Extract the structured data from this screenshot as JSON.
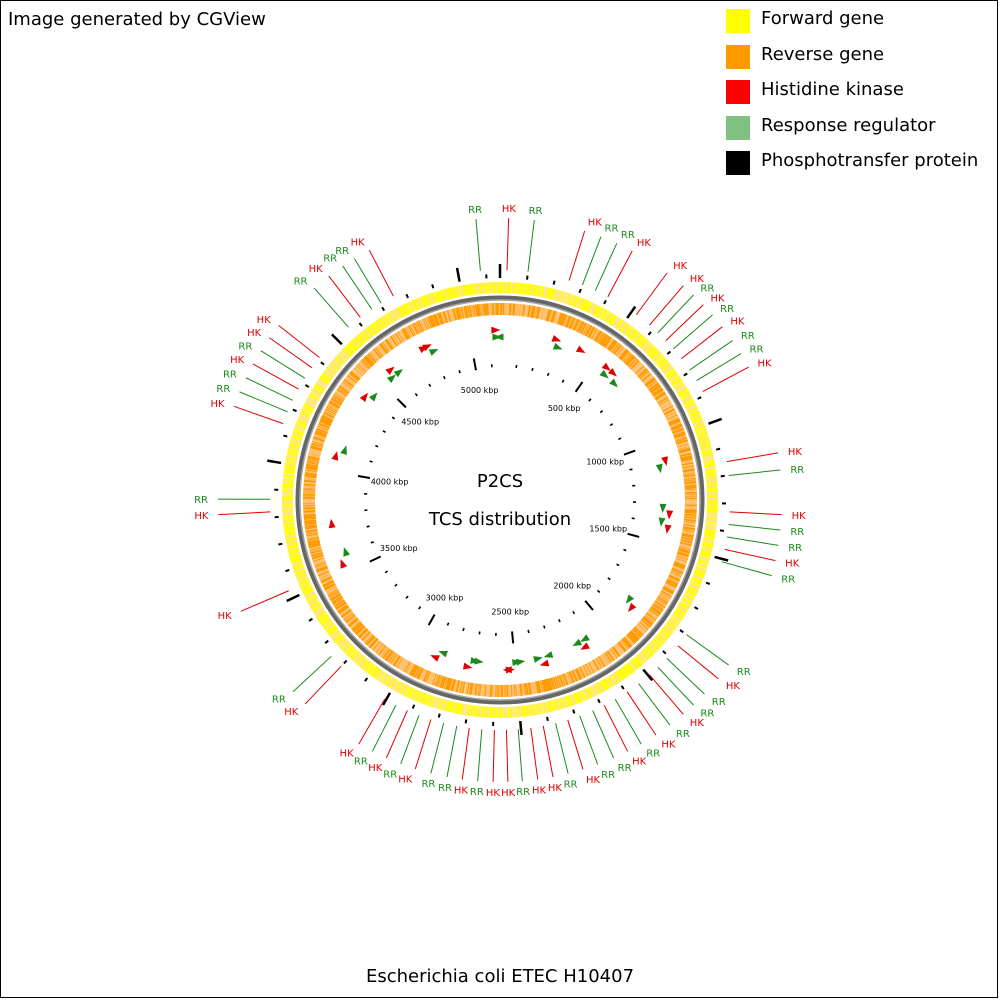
{
  "header": {
    "credit": "Image generated by CGView"
  },
  "legend": [
    {
      "label": "Forward gene",
      "color": "#ffff00"
    },
    {
      "label": "Reverse gene",
      "color": "#ff9a00"
    },
    {
      "label": "Histidine kinase",
      "color": "#ff0000"
    },
    {
      "label": "Response regulator",
      "color": "#80c080"
    },
    {
      "label": "Phosphotransfer protein",
      "color": "#000000"
    }
  ],
  "map": {
    "title": "P2CS",
    "subtitle": "TCS distribution",
    "organism": "Escherichia coli ETEC H10407",
    "genome_length_kbp": 5150,
    "tick_labels": [
      "500 kbp",
      "1000 kbp",
      "1500 kbp",
      "2000 kbp",
      "2500 kbp",
      "3000 kbp",
      "3500 kbp",
      "4000 kbp",
      "4500 kbp",
      "5000 kbp"
    ],
    "feature_labels": [
      {
        "text": "RR",
        "kbp": -70
      },
      {
        "text": "HK",
        "kbp": 25
      },
      {
        "text": "RR",
        "kbp": 100
      },
      {
        "text": "HK",
        "kbp": 250
      },
      {
        "text": "RR",
        "kbp": 300
      },
      {
        "text": "RR",
        "kbp": 350
      },
      {
        "text": "HK",
        "kbp": 400
      },
      {
        "text": "HK",
        "kbp": 520
      },
      {
        "text": "HK",
        "kbp": 580
      },
      {
        "text": "RR",
        "kbp": 620
      },
      {
        "text": "HK",
        "kbp": 660
      },
      {
        "text": "RR",
        "kbp": 700
      },
      {
        "text": "HK",
        "kbp": 745
      },
      {
        "text": "RR",
        "kbp": 795
      },
      {
        "text": "RR",
        "kbp": 840
      },
      {
        "text": "HK",
        "kbp": 885
      },
      {
        "text": "HK",
        "kbp": 1150
      },
      {
        "text": "RR",
        "kbp": 1200
      },
      {
        "text": "HK",
        "kbp": 1330
      },
      {
        "text": "RR",
        "kbp": 1375
      },
      {
        "text": "RR",
        "kbp": 1420
      },
      {
        "text": "HK",
        "kbp": 1465
      },
      {
        "text": "RR",
        "kbp": 1510
      },
      {
        "text": "RR",
        "kbp": 1800
      },
      {
        "text": "HK",
        "kbp": 1850
      },
      {
        "text": "RR",
        "kbp": 1910
      },
      {
        "text": "RR",
        "kbp": 1955
      },
      {
        "text": "HK",
        "kbp": 1995
      },
      {
        "text": "RR",
        "kbp": 2045
      },
      {
        "text": "HK",
        "kbp": 2095
      },
      {
        "text": "RR",
        "kbp": 2145
      },
      {
        "text": "HK",
        "kbp": 2190
      },
      {
        "text": "RR",
        "kbp": 2235
      },
      {
        "text": "RR",
        "kbp": 2285
      },
      {
        "text": "HK",
        "kbp": 2330
      },
      {
        "text": "RR",
        "kbp": 2375
      },
      {
        "text": "HK",
        "kbp": 2420
      },
      {
        "text": "HK",
        "kbp": 2465
      },
      {
        "text": "RR",
        "kbp": 2510
      },
      {
        "text": "HK",
        "kbp": 2552
      },
      {
        "text": "HK",
        "kbp": 2595
      },
      {
        "text": "RR",
        "kbp": 2640
      },
      {
        "text": "HK",
        "kbp": 2685
      },
      {
        "text": "RR",
        "kbp": 2730
      },
      {
        "text": "RR",
        "kbp": 2778
      },
      {
        "text": "HK",
        "kbp": 2825
      },
      {
        "text": "RR",
        "kbp": 2870
      },
      {
        "text": "HK",
        "kbp": 2915
      },
      {
        "text": "RR",
        "kbp": 2960
      },
      {
        "text": "HK",
        "kbp": 3005
      },
      {
        "text": "HK",
        "kbp": 3200
      },
      {
        "text": "RR",
        "kbp": 3250
      },
      {
        "text": "HK",
        "kbp": 3530
      },
      {
        "text": "HK",
        "kbp": 3820
      },
      {
        "text": "RR",
        "kbp": 3865
      },
      {
        "text": "HK",
        "kbp": 4140
      },
      {
        "text": "RR",
        "kbp": 4185
      },
      {
        "text": "RR",
        "kbp": 4230
      },
      {
        "text": "HK",
        "kbp": 4275
      },
      {
        "text": "RR",
        "kbp": 4320
      },
      {
        "text": "HK",
        "kbp": 4365
      },
      {
        "text": "HK",
        "kbp": 4410
      },
      {
        "text": "RR",
        "kbp": 4560
      },
      {
        "text": "HK",
        "kbp": 4615
      },
      {
        "text": "RR",
        "kbp": 4665
      },
      {
        "text": "RR",
        "kbp": 4705
      },
      {
        "text": "HK",
        "kbp": 4755
      }
    ],
    "inner_features": [
      {
        "type": "HK",
        "kbp": 5130,
        "dir": 1
      },
      {
        "type": "RR",
        "kbp": 5135,
        "dir": 1
      },
      {
        "type": "RR",
        "kbp": 5145,
        "dir": -1
      },
      {
        "type": "HK",
        "kbp": 280,
        "dir": 1
      },
      {
        "type": "RR",
        "kbp": 300,
        "dir": 1
      },
      {
        "type": "HK",
        "kbp": 410,
        "dir": 1
      },
      {
        "type": "HK",
        "kbp": 560,
        "dir": 1
      },
      {
        "type": "RR",
        "kbp": 575,
        "dir": 1
      },
      {
        "type": "HK",
        "kbp": 600,
        "dir": 1
      },
      {
        "type": "RR",
        "kbp": 640,
        "dir": 1
      },
      {
        "type": "HK",
        "kbp": 1100,
        "dir": 1
      },
      {
        "type": "RR",
        "kbp": 1130,
        "dir": 1
      },
      {
        "type": "RR",
        "kbp": 1330,
        "dir": 1
      },
      {
        "type": "HK",
        "kbp": 1360,
        "dir": 1
      },
      {
        "type": "RR",
        "kbp": 1400,
        "dir": 1
      },
      {
        "type": "HK",
        "kbp": 1430,
        "dir": 1
      },
      {
        "type": "RR",
        "kbp": 1830,
        "dir": 1
      },
      {
        "type": "HK",
        "kbp": 1855,
        "dir": 1
      },
      {
        "type": "RR",
        "kbp": 2130,
        "dir": 1
      },
      {
        "type": "HK",
        "kbp": 2150,
        "dir": 1
      },
      {
        "type": "RR",
        "kbp": 2175,
        "dir": 1
      },
      {
        "type": "RR",
        "kbp": 2330,
        "dir": 1
      },
      {
        "type": "HK",
        "kbp": 2360,
        "dir": 1
      },
      {
        "type": "RR",
        "kbp": 2380,
        "dir": -1
      },
      {
        "type": "RR",
        "kbp": 2470,
        "dir": -1
      },
      {
        "type": "RR",
        "kbp": 2490,
        "dir": -1
      },
      {
        "type": "HK",
        "kbp": 2525,
        "dir": -1
      },
      {
        "type": "HK",
        "kbp": 2540,
        "dir": 1
      },
      {
        "type": "RR",
        "kbp": 2680,
        "dir": -1
      },
      {
        "type": "RR",
        "kbp": 2700,
        "dir": -1
      },
      {
        "type": "HK",
        "kbp": 2730,
        "dir": -1
      },
      {
        "type": "RR",
        "kbp": 2870,
        "dir": 1
      },
      {
        "type": "HK",
        "kbp": 2900,
        "dir": 1
      },
      {
        "type": "HK",
        "kbp": 3550,
        "dir": 1
      },
      {
        "type": "RR",
        "kbp": 3600,
        "dir": 1
      },
      {
        "type": "HK",
        "kbp": 3750,
        "dir": 1
      },
      {
        "type": "HK",
        "kbp": 4080,
        "dir": 1
      },
      {
        "type": "RR",
        "kbp": 4120,
        "dir": 1
      },
      {
        "type": "HK",
        "kbp": 4400,
        "dir": 1
      },
      {
        "type": "RR",
        "kbp": 4430,
        "dir": 1
      },
      {
        "type": "RR",
        "kbp": 4560,
        "dir": 1
      },
      {
        "type": "HK",
        "kbp": 4580,
        "dir": 1
      },
      {
        "type": "RR",
        "kbp": 4605,
        "dir": 1
      },
      {
        "type": "HK",
        "kbp": 4770,
        "dir": 1
      },
      {
        "type": "HK",
        "kbp": 4790,
        "dir": 1
      },
      {
        "type": "RR",
        "kbp": 4810,
        "dir": 1
      }
    ]
  }
}
